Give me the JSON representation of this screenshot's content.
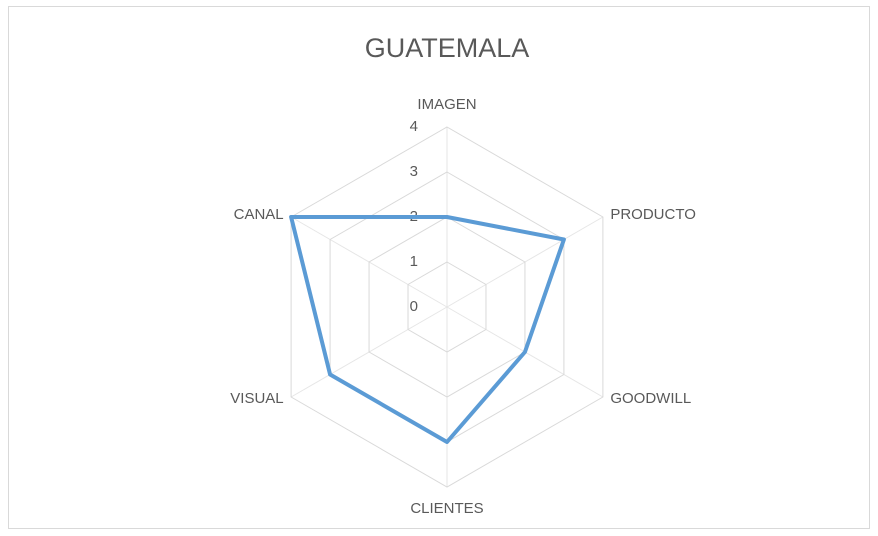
{
  "chart_data": {
    "type": "radar",
    "title": "GUATEMALA",
    "categories": [
      "IMAGEN",
      "PRODUCTO",
      "GOODWILL",
      "CLIENTES",
      "VISUAL",
      "CANAL"
    ],
    "series": [
      {
        "name": "GUATEMALA",
        "color": "#5b9bd5",
        "values": [
          2,
          3,
          2,
          3,
          3,
          4
        ]
      }
    ],
    "rlim": [
      0,
      4
    ],
    "rticks": [
      0,
      1,
      2,
      3,
      4
    ],
    "grid": true
  }
}
